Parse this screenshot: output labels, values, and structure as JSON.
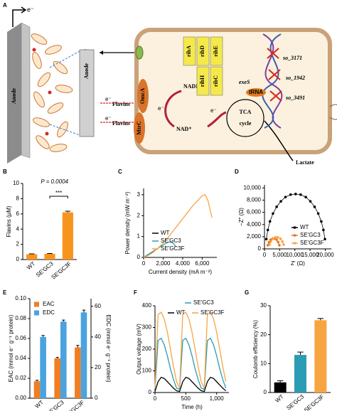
{
  "diagram": {
    "panel": "A",
    "electron_top": "e⁻",
    "anode_large": "Anode",
    "anode_small": "Anode",
    "flavins_1": "Flavins",
    "flavins_2": "Flavins",
    "electron_1": "e⁻",
    "electron_2": "e⁻",
    "omc_upper": "OmcA",
    "omc_lower": "MtrC",
    "nadh": "NADH",
    "nad": "NAD⁺",
    "electron_3": "e⁻",
    "electron_4": "e⁻",
    "tca_1": "TCA",
    "tca_2": "cycle",
    "lactate": "Lactate",
    "genes": [
      "ribA",
      "ribD",
      "ribE",
      "ribH",
      "ribC"
    ],
    "exes": "exeS",
    "trna": "tRNA",
    "knockouts": [
      "so_3171",
      "so_1942",
      "so_3491"
    ]
  },
  "chart_data": [
    {
      "panel": "B",
      "type": "bar",
      "y_label": "Flavins (μM)",
      "categories": [
        "WT",
        "SE'GC3",
        "SE'GC3F"
      ],
      "series": [
        {
          "color": "#f7941d",
          "values": [
            0.7,
            0.75,
            6.2
          ],
          "errors": [
            0.05,
            0.05,
            0.15
          ]
        }
      ],
      "ylim": [
        0,
        10
      ],
      "yticks": [
        0,
        2,
        4,
        6,
        8,
        10
      ],
      "annotation": "P = 0.0004",
      "significance": "***"
    },
    {
      "panel": "C",
      "type": "line",
      "x_label": "Current density (mA m⁻²)",
      "y_label": "Power density (mW m⁻²)",
      "series": [
        {
          "name": "WT",
          "color": "#000000",
          "x": [
            0,
            200,
            400,
            600,
            800,
            1000
          ],
          "values": [
            0,
            0.06,
            0.12,
            0.17,
            0.22,
            0.25
          ]
        },
        {
          "name": "SE'GC3",
          "color": "#2a9db5",
          "x": [
            0,
            500,
            1000,
            1500,
            2000,
            2500,
            2800,
            3100,
            3300
          ],
          "values": [
            0,
            0.15,
            0.3,
            0.45,
            0.6,
            0.72,
            0.75,
            0.65,
            0.5
          ]
        },
        {
          "name": "SE'GC3F",
          "color": "#f7a541",
          "x": [
            0,
            500,
            1000,
            1500,
            2000,
            2500,
            3000,
            3500,
            4000,
            4500,
            5000,
            5500,
            6000,
            6300,
            6600,
            7000
          ],
          "values": [
            0,
            0.1,
            0.25,
            0.45,
            0.7,
            0.95,
            1.25,
            1.55,
            1.85,
            2.15,
            2.45,
            2.7,
            2.95,
            3.0,
            2.7,
            1.9
          ]
        }
      ],
      "xlim": [
        0,
        7500
      ],
      "xticks": [
        0,
        {
          "value": 2000,
          "label": "2,000"
        },
        {
          "value": 4000,
          "label": "4,000"
        },
        {
          "value": 6000,
          "label": "6,000"
        }
      ],
      "ylim": [
        0,
        3.3
      ],
      "yticks": [
        0,
        1,
        2,
        3
      ]
    },
    {
      "panel": "D",
      "type": "scatter",
      "x_label": "Z′ (Ω)",
      "y_label": "−Z″ (Ω)",
      "series": [
        {
          "name": "WT",
          "color": "#000000",
          "x": [
            600,
            1100,
            1800,
            2800,
            4000,
            5400,
            6900,
            8600,
            10250,
            11900,
            13600,
            15100,
            16500,
            17700,
            18700,
            19400,
            19900
          ],
          "values": [
            1600,
            3100,
            4500,
            5800,
            6900,
            7800,
            8500,
            8900,
            9000,
            8900,
            8500,
            7800,
            6900,
            5800,
            4500,
            3100,
            1600
          ]
        },
        {
          "name": "SE'GC3",
          "color": "#e8731a",
          "x": [
            1100,
            1500,
            2000,
            2700,
            3300,
            4000,
            4500,
            4900
          ],
          "values": [
            600,
            1100,
            1500,
            1700,
            1700,
            1500,
            1100,
            600
          ]
        },
        {
          "name": "SE'GC3F",
          "color": "#f7a541",
          "x": [
            1700,
            2100,
            2800,
            3600,
            4400,
            5300,
            5900,
            6300
          ],
          "values": [
            700,
            1200,
            1650,
            1900,
            1900,
            1650,
            1200,
            700
          ]
        }
      ],
      "xlim": [
        0,
        22000
      ],
      "xticks": [
        0,
        {
          "value": 5000,
          "label": "5,000"
        },
        {
          "value": 10000,
          "label": "10,000"
        },
        {
          "value": 15000,
          "label": "15,000"
        },
        {
          "value": 20000,
          "label": "20,000"
        }
      ],
      "ylim": [
        0,
        10500
      ],
      "yticks": [
        0,
        {
          "value": 2000,
          "label": "2,000"
        },
        {
          "value": 4000,
          "label": "4,000"
        },
        {
          "value": 6000,
          "label": "6,000"
        },
        {
          "value": 8000,
          "label": "8,000"
        },
        {
          "value": 10000,
          "label": "10,000"
        }
      ]
    },
    {
      "panel": "E",
      "type": "bar",
      "y_label": "EAC (mmol e⁻ g⁻¹ protein)",
      "y2_label": "EDC (mmol e⁻ g⁻¹ protein)",
      "categories": [
        "WT",
        "SE'GC3",
        "SE'GC3F"
      ],
      "series": [
        {
          "name": "EAC",
          "color": "#f07e22",
          "values": [
            0.017,
            0.04,
            0.051
          ],
          "errors": [
            0.001,
            0.001,
            0.002
          ]
        },
        {
          "name": "EDC",
          "color": "#4aa3df",
          "axis": "y2",
          "values": [
            40,
            50,
            56
          ],
          "errors": [
            1,
            1,
            1.5
          ]
        }
      ],
      "ylim": [
        0,
        0.1
      ],
      "yticks": [
        {
          "value": 0,
          "label": "0.00"
        },
        0.02,
        0.04,
        0.06,
        0.08,
        {
          "value": 0.1,
          "label": "0.10"
        }
      ],
      "y2lim": [
        0,
        65
      ],
      "y2ticks": [
        0,
        20,
        40,
        60
      ]
    },
    {
      "panel": "F",
      "type": "line",
      "x_label": "Time (h)",
      "y_label": "Output voltage (mV)",
      "x": [
        0,
        50,
        100,
        150,
        200,
        250,
        300,
        350,
        400,
        450,
        500,
        550,
        600,
        650,
        700,
        750,
        800,
        850,
        900,
        950,
        1000,
        1050,
        1100,
        1150
      ],
      "series": [
        {
          "name": "WT",
          "color": "#000000",
          "values": [
            5,
            50,
            70,
            65,
            50,
            35,
            20,
            8,
            5,
            50,
            70,
            65,
            50,
            35,
            20,
            8,
            5,
            50,
            70,
            65,
            50,
            35,
            20,
            8
          ]
        },
        {
          "name": "SE'GC3",
          "color": "#2a9db5",
          "values": [
            15,
            240,
            250,
            220,
            170,
            110,
            60,
            20,
            15,
            240,
            250,
            220,
            170,
            110,
            60,
            20,
            15,
            240,
            250,
            220,
            170,
            110,
            60,
            20
          ]
        },
        {
          "name": "SE'GC3F",
          "color": "#f7a541",
          "values": [
            20,
            360,
            370,
            340,
            280,
            200,
            120,
            50,
            20,
            360,
            370,
            340,
            280,
            200,
            120,
            50,
            20,
            360,
            370,
            340,
            280,
            200,
            120,
            50
          ]
        }
      ],
      "xlim": [
        0,
        1200
      ],
      "xticks": [
        0,
        500,
        {
          "value": 1000,
          "label": "1,000"
        }
      ],
      "ylim": [
        0,
        400
      ],
      "yticks": [
        0,
        100,
        200,
        300,
        400
      ]
    },
    {
      "panel": "G",
      "type": "bar",
      "y_label": "Coulomb efficiency (%)",
      "categories": [
        "WT",
        "SE'GC3",
        "SE'GC3F"
      ],
      "series": [
        {
          "colors": [
            "#000000",
            "#2a9db5",
            "#f7a541"
          ],
          "values": [
            3.5,
            13,
            25
          ],
          "errors": [
            0.6,
            1,
            0.6
          ]
        }
      ],
      "ylim": [
        0,
        30
      ],
      "yticks": [
        0,
        10,
        20,
        30
      ]
    }
  ]
}
